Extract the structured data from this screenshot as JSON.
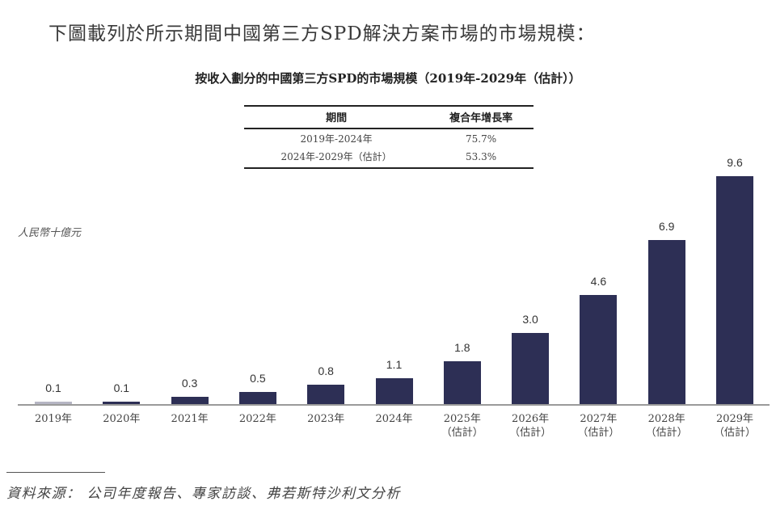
{
  "intro_text": "下圖載列於所示期間中國第三方SPD解決方案市場的市場規模：",
  "chart_title": "按收入劃分的中國第三方SPD的市場規模（2019年-2029年（估計））",
  "cagr_table": {
    "headers": [
      "期間",
      "複合年增長率"
    ],
    "rows": [
      [
        "2019年-2024年",
        "75.7%"
      ],
      [
        "2024年-2029年（估計）",
        "53.3%"
      ]
    ]
  },
  "unit_label": "人民幣十億元",
  "bar_color": "#2d2f55",
  "source_text": "資料來源： 公司年度報告、專家訪談、弗若斯特沙利文分析",
  "chart_data": {
    "type": "bar",
    "title": "按收入劃分的中國第三方SPD的市場規模（2019年-2029年（估計））",
    "xlabel": "",
    "ylabel": "人民幣十億元",
    "categories": [
      "2019年",
      "2020年",
      "2021年",
      "2022年",
      "2023年",
      "2024年",
      "2025年（估計）",
      "2026年（估計）",
      "2027年（估計）",
      "2028年（估計）",
      "2029年（估計）"
    ],
    "category_lines": [
      [
        "2019年"
      ],
      [
        "2020年"
      ],
      [
        "2021年"
      ],
      [
        "2022年"
      ],
      [
        "2023年"
      ],
      [
        "2024年"
      ],
      [
        "2025年",
        "（估計）"
      ],
      [
        "2026年",
        "（估計）"
      ],
      [
        "2027年",
        "（估計）"
      ],
      [
        "2028年",
        "（估計）"
      ],
      [
        "2029年",
        "（估計）"
      ]
    ],
    "values": [
      0.1,
      0.1,
      0.3,
      0.5,
      0.8,
      1.1,
      1.8,
      3.0,
      4.6,
      6.9,
      9.6
    ],
    "value_labels": [
      "0.1",
      "0.1",
      "0.3",
      "0.5",
      "0.8",
      "1.1",
      "1.8",
      "3.0",
      "4.6",
      "6.9",
      "9.6"
    ],
    "ylim": [
      0,
      10
    ],
    "grid": false,
    "legend": "none",
    "cagr": [
      {
        "period": "2019年-2024年",
        "rate": "75.7%"
      },
      {
        "period": "2024年-2029年（估計）",
        "rate": "53.3%"
      }
    ]
  }
}
